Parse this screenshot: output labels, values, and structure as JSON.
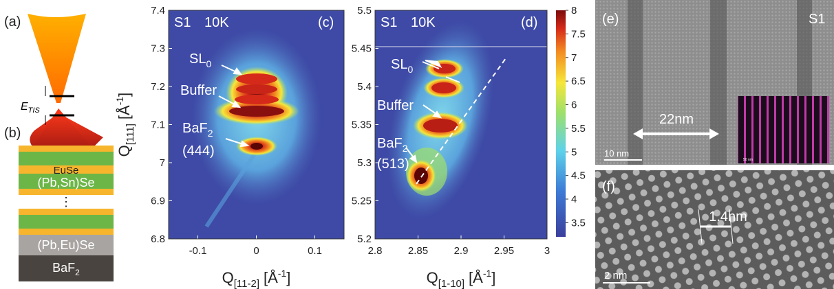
{
  "panel_a": {
    "label": "(a)",
    "energy_label": {
      "symbol": "E",
      "subscript": "TIS"
    }
  },
  "panel_b": {
    "label": "(b)",
    "layers": [
      "EuSe",
      "(Pb,Sn)Se",
      "⋮",
      "(Pb,Eu)Se"
    ],
    "substrate": {
      "text": "BaF",
      "subscript": "2"
    }
  },
  "panel_c": {
    "label": "(c)",
    "sample": "S1",
    "temperature": "10K",
    "xlim": [
      -0.15,
      0.15
    ],
    "xticks": [
      -0.1,
      0,
      0.1
    ],
    "ylim": [
      6.8,
      7.4
    ],
    "yticks": [
      6.8,
      6.9,
      7,
      7.1,
      7.2,
      7.3,
      7.4
    ],
    "x_label": {
      "symbol": "Q",
      "subscript": "[11-2]",
      "unit": "[Å",
      "unit_sup": "-1",
      "unit_close": "]"
    },
    "y_label": {
      "symbol": "Q",
      "subscript": "[111]",
      "unit": "[Å",
      "unit_sup": "-1",
      "unit_close": "]"
    },
    "annotations": [
      {
        "text": "SL",
        "subscript": "0"
      },
      {
        "text": "Buffer"
      },
      {
        "text": "BaF",
        "subscript": "2"
      },
      {
        "text": "(444)"
      }
    ]
  },
  "panel_d": {
    "label": "(d)",
    "sample": "S1",
    "temperature": "10K",
    "xlim": [
      2.8,
      3
    ],
    "xticks": [
      2.8,
      2.85,
      2.9,
      2.95,
      3
    ],
    "ylim": [
      5.2,
      5.5
    ],
    "yticks": [
      5.2,
      5.25,
      5.3,
      5.35,
      5.4,
      5.45,
      5.5
    ],
    "x_label": {
      "symbol": "Q",
      "subscript": "[1-10]",
      "unit": "[Å",
      "unit_sup": "-1",
      "unit_close": "]"
    },
    "annotations": [
      {
        "text": "SL",
        "subscript": "0"
      },
      {
        "text": "Buffer"
      },
      {
        "text": "BaF",
        "subscript": "2"
      },
      {
        "text": "(513)"
      }
    ]
  },
  "colorbar": {
    "clim": [
      3.2,
      8
    ],
    "ticks": [
      3.5,
      4,
      4.5,
      5,
      5.5,
      6,
      6.5,
      7,
      7.5,
      8
    ]
  },
  "panel_e": {
    "label": "(e)",
    "sample": "S1",
    "width_label": "22nm",
    "scale_bar": "10 nm",
    "inset_scale": "50 nm"
  },
  "panel_f": {
    "label": "(f)",
    "spacing_label": "1.4nm",
    "scale_bar": "2 nm"
  }
}
